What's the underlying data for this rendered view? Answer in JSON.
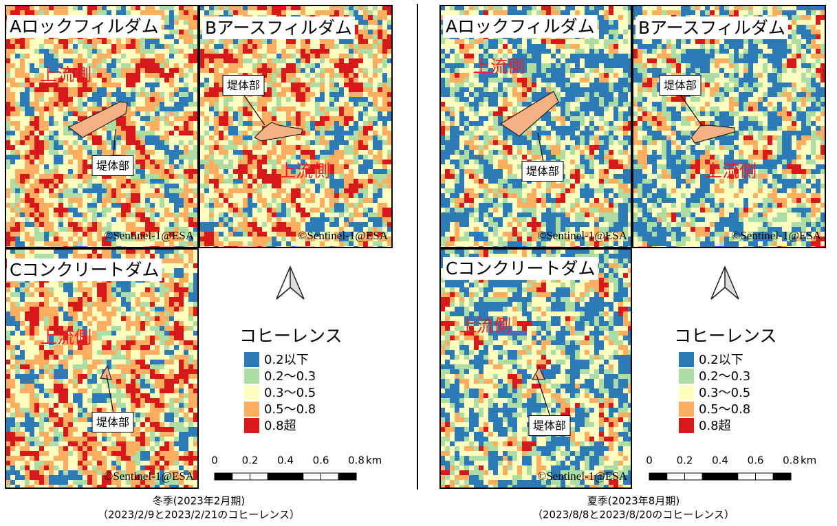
{
  "panels": [
    {
      "caption_line1": "冬季(2023年2月期)",
      "caption_line2": "（2023/2/9と2023/2/21のコヒーレンス）",
      "maps": [
        {
          "label": "Aロックフィルダム",
          "upstream": "上流側",
          "dam": "堤体部",
          "credit": "©Sentinel-1@ESA"
        },
        {
          "label": "Bアースフィルダム",
          "upstream": "上流側",
          "dam": "堤体部",
          "credit": "©Sentinel-1@ESA"
        },
        {
          "label": "Cコンクリートダム",
          "upstream": "上流側",
          "dam": "堤体部",
          "credit": "©Sentinel-1@ESA"
        }
      ],
      "legend": {
        "title": "コヒーレンス",
        "items": [
          {
            "label": "0.2以下",
            "color": "#2c7bb6"
          },
          {
            "label": "0.2～0.3",
            "color": "#abdda4"
          },
          {
            "label": "0.3～0.5",
            "color": "#ffffbf"
          },
          {
            "label": "0.5～0.8",
            "color": "#fdae61"
          },
          {
            "label": "0.8超",
            "color": "#d7191c"
          }
        ]
      },
      "scale": {
        "ticks": [
          "0",
          "0.2",
          "0.4",
          "0.6",
          "0.8"
        ],
        "unit": "km"
      }
    },
    {
      "caption_line1": "夏季(2023年8月期)",
      "caption_line2": "（2023/8/8と2023/8/20のコヒーレンス）",
      "maps": [
        {
          "label": "Aロックフィルダム",
          "upstream": "上流側",
          "dam": "堤体部",
          "credit": "©Sentinel-1@ESA"
        },
        {
          "label": "Bアースフィルダム",
          "upstream": "上流側",
          "dam": "堤体部",
          "credit": "©Sentinel-1@ESA"
        },
        {
          "label": "Cコンクリートダム",
          "upstream": "上流側",
          "dam": "堤体部",
          "credit": "©Sentinel-1@ESA"
        }
      ],
      "legend": {
        "title": "コヒーレンス",
        "items": [
          {
            "label": "0.2以下",
            "color": "#2c7bb6"
          },
          {
            "label": "0.2～0.3",
            "color": "#abdda4"
          },
          {
            "label": "0.3～0.5",
            "color": "#ffffbf"
          },
          {
            "label": "0.5～0.8",
            "color": "#fdae61"
          },
          {
            "label": "0.8超",
            "color": "#d7191c"
          }
        ]
      },
      "scale": {
        "ticks": [
          "0",
          "0.2",
          "0.4",
          "0.6",
          "0.8"
        ],
        "unit": "km"
      }
    }
  ]
}
